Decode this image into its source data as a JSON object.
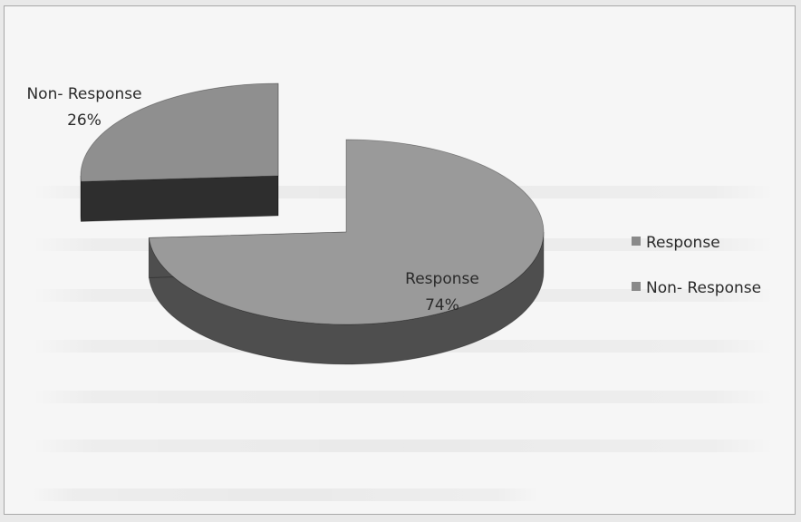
{
  "chart_data": {
    "type": "pie",
    "style": "3d-exploded",
    "categories": [
      "Response",
      "Non- Response"
    ],
    "values": [
      74,
      26
    ],
    "value_unit": "%",
    "data_labels": [
      {
        "category": "Response",
        "percent": "74%"
      },
      {
        "category": "Non- Response",
        "percent": "26%"
      }
    ],
    "legend": {
      "placement": "right",
      "entries": [
        "Response",
        "Non- Response"
      ]
    },
    "colors": {
      "Response": "#9a9a9a",
      "Non-Response": "#8f8f8f",
      "Response-side": "#4e4e4e",
      "Non-Response-side": "#2e2e2e",
      "legend-marker": "#8a8a8a"
    }
  }
}
